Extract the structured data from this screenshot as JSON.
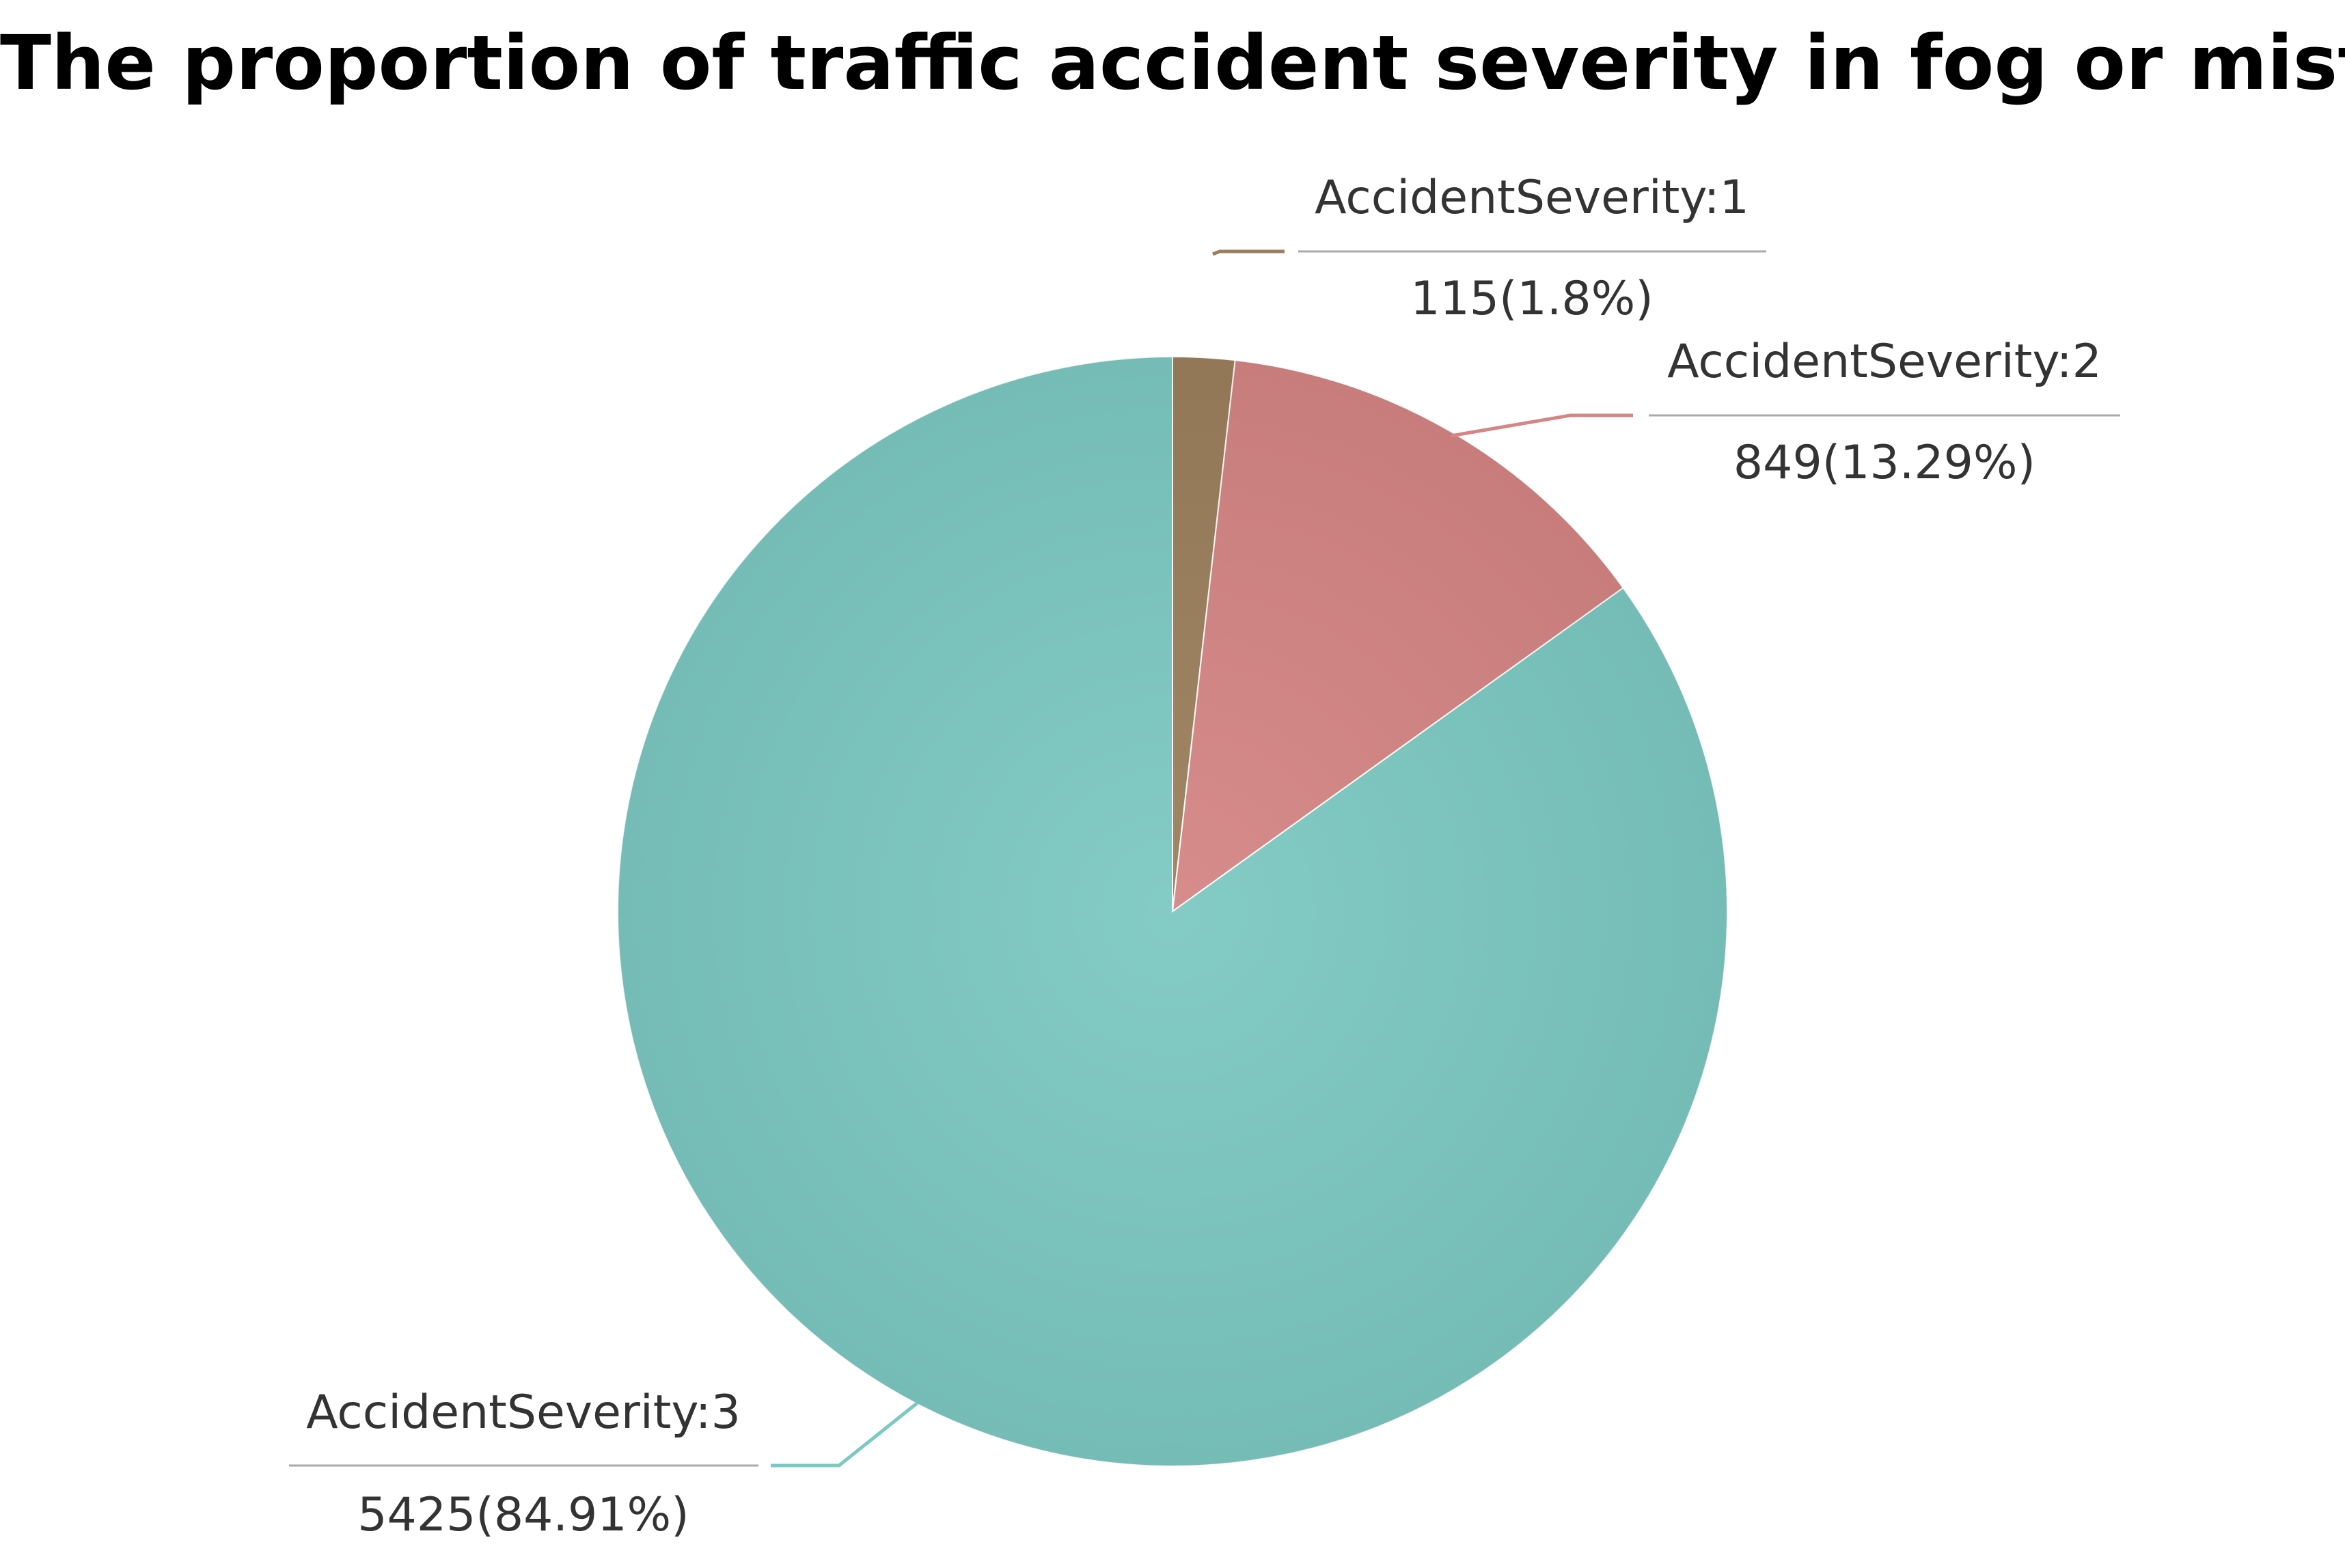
{
  "chart_data": {
    "type": "pie",
    "title": "The proportion of traffic accident severity in fog or mist",
    "slices": [
      {
        "name": "AccidentSeverity:1",
        "value": 115,
        "percent_label": "115(1.8%)",
        "color": "#9b7f5c"
      },
      {
        "name": "AccidentSeverity:2",
        "value": 849,
        "percent_label": "849(13.29%)",
        "color": "#d48584"
      },
      {
        "name": "AccidentSeverity:3",
        "value": 5425,
        "percent_label": "5425(84.91%)",
        "color": "#7cc8c2"
      }
    ],
    "start_angle": "12 o'clock",
    "direction": "clockwise",
    "legend": "none",
    "label_line_color": "#aaaaaa"
  }
}
